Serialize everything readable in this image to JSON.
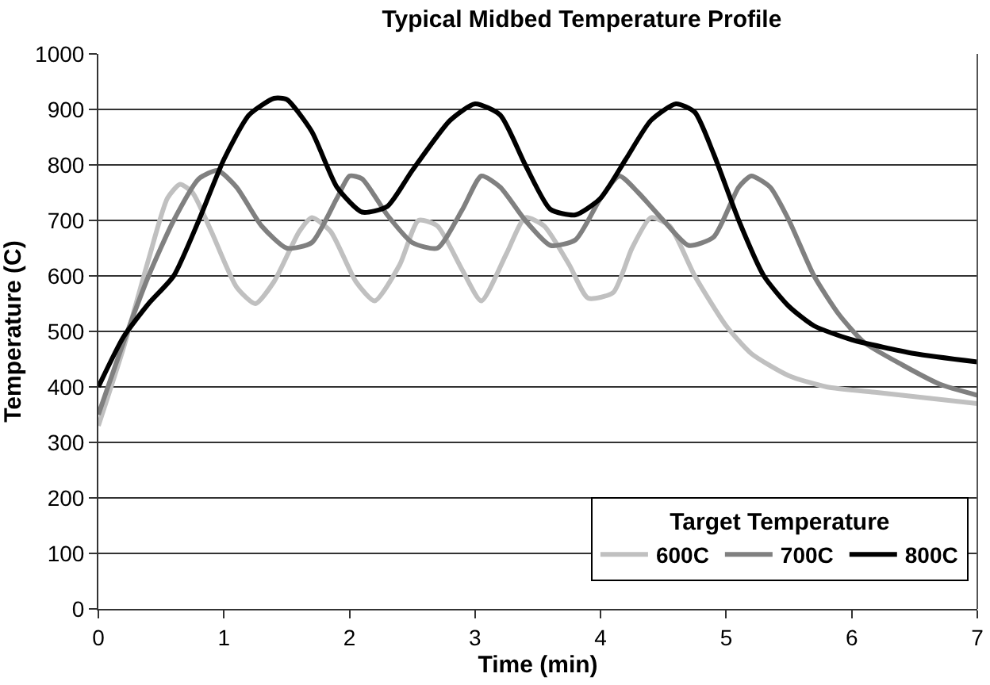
{
  "chart_data": {
    "type": "line",
    "title": "Typical Midbed Temperature Profile",
    "xlabel": "Time (min)",
    "ylabel": "Temperature (C)",
    "legend_title": "Target Temperature",
    "xlim": [
      0,
      7
    ],
    "xticks": [
      0,
      1,
      2,
      3,
      4,
      5,
      6,
      7
    ],
    "ylim": [
      0,
      1000
    ],
    "yticks": [
      0,
      100,
      200,
      300,
      400,
      500,
      600,
      700,
      800,
      900,
      1000
    ],
    "grid": "y",
    "legend": "bottom right",
    "marker": "none",
    "line_style": "solid",
    "series": [
      {
        "name": "600C",
        "color": "#c0c0c0",
        "x": [
          0,
          0.2,
          0.4,
          0.55,
          0.65,
          0.75,
          0.9,
          1.1,
          1.25,
          1.4,
          1.6,
          1.7,
          1.85,
          2.05,
          2.2,
          2.4,
          2.55,
          2.7,
          2.9,
          3.05,
          3.25,
          3.4,
          3.55,
          3.75,
          3.9,
          4.1,
          4.25,
          4.4,
          4.55,
          4.75,
          5.0,
          5.2,
          5.5,
          5.8,
          6.2,
          6.6,
          7
        ],
        "values": [
          330,
          470,
          630,
          740,
          765,
          750,
          680,
          580,
          550,
          590,
          680,
          705,
          680,
          590,
          555,
          620,
          700,
          690,
          610,
          555,
          640,
          705,
          690,
          620,
          560,
          570,
          650,
          705,
          690,
          600,
          510,
          460,
          420,
          400,
          390,
          380,
          370
        ]
      },
      {
        "name": "700C",
        "color": "#808080",
        "x": [
          0,
          0.2,
          0.4,
          0.6,
          0.8,
          0.95,
          1.1,
          1.3,
          1.5,
          1.7,
          1.9,
          2.0,
          2.1,
          2.3,
          2.5,
          2.7,
          2.9,
          3.05,
          3.2,
          3.4,
          3.6,
          3.8,
          4.0,
          4.15,
          4.3,
          4.5,
          4.7,
          4.9,
          5.1,
          5.2,
          5.35,
          5.5,
          5.7,
          5.9,
          6.1,
          6.4,
          6.7,
          7
        ],
        "values": [
          350,
          480,
          600,
          700,
          775,
          790,
          760,
          690,
          650,
          660,
          740,
          780,
          775,
          710,
          660,
          650,
          720,
          780,
          760,
          700,
          655,
          665,
          740,
          780,
          750,
          700,
          655,
          670,
          760,
          780,
          760,
          700,
          600,
          530,
          480,
          440,
          405,
          385
        ]
      },
      {
        "name": "800C",
        "color": "#000000",
        "x": [
          0,
          0.2,
          0.4,
          0.6,
          0.8,
          1.0,
          1.2,
          1.4,
          1.5,
          1.7,
          1.9,
          2.1,
          2.3,
          2.5,
          2.8,
          3.0,
          3.2,
          3.4,
          3.6,
          3.8,
          4.0,
          4.2,
          4.4,
          4.6,
          4.75,
          4.9,
          5.1,
          5.3,
          5.5,
          5.7,
          6.0,
          6.5,
          7
        ],
        "values": [
          400,
          490,
          550,
          600,
          700,
          810,
          890,
          920,
          918,
          860,
          760,
          715,
          725,
          790,
          880,
          910,
          890,
          800,
          720,
          710,
          740,
          810,
          880,
          910,
          895,
          820,
          700,
          600,
          545,
          510,
          485,
          460,
          445
        ]
      }
    ]
  }
}
